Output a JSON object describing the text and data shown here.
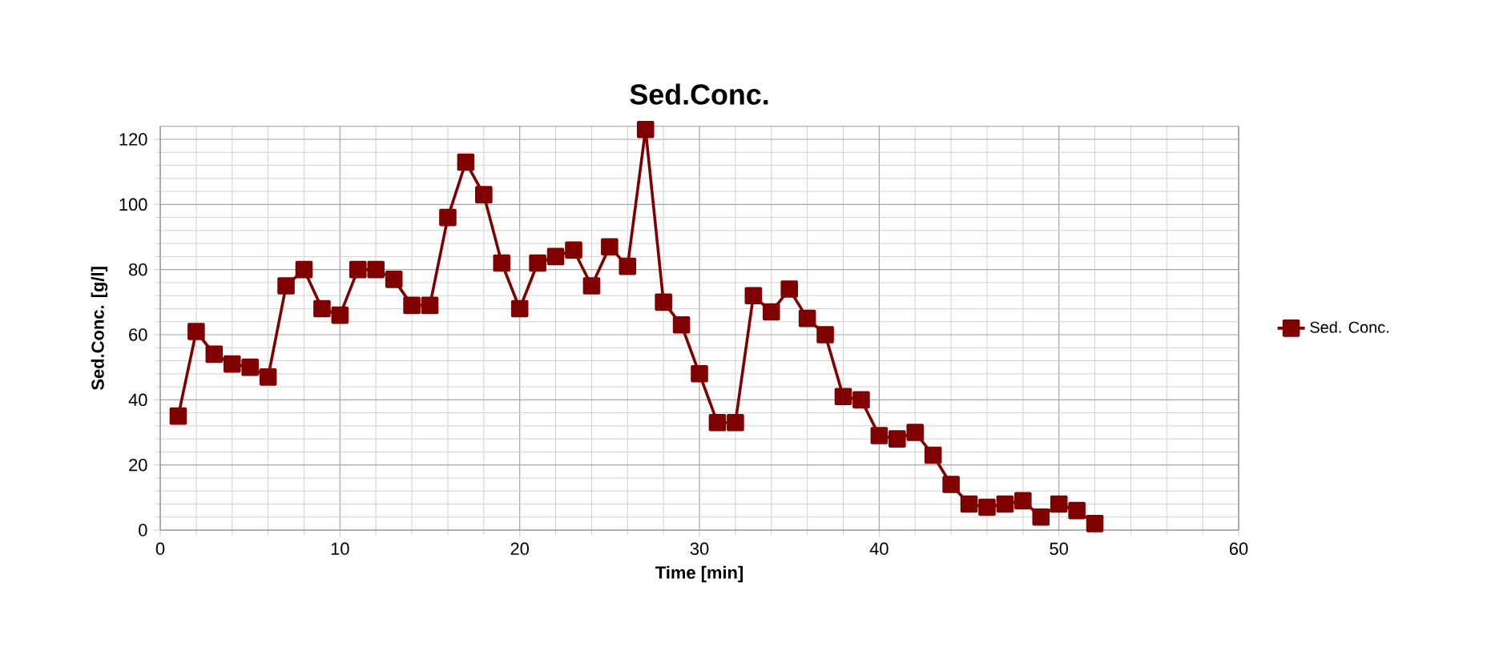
{
  "chart_data": {
    "type": "line",
    "title": "Sed.Conc.",
    "xlabel": "Time [min]",
    "ylabel": "Sed.Conc. [g/l]",
    "x": [
      1,
      2,
      3,
      4,
      5,
      6,
      7,
      8,
      9,
      10,
      11,
      12,
      13,
      14,
      15,
      16,
      17,
      18,
      19,
      20,
      21,
      22,
      23,
      24,
      25,
      26,
      27,
      28,
      29,
      30,
      31,
      32,
      33,
      34,
      35,
      36,
      37,
      38,
      39,
      40,
      41,
      42,
      43,
      44,
      45,
      46,
      47,
      48,
      49,
      50,
      51,
      52
    ],
    "series": [
      {
        "name": "Sed. Conc.",
        "color": "#800000",
        "values": [
          35,
          61,
          54,
          51,
          50,
          47,
          75,
          80,
          68,
          66,
          80,
          80,
          77,
          69,
          69,
          96,
          113,
          103,
          82,
          68,
          82,
          84,
          86,
          75,
          87,
          81,
          123,
          70,
          63,
          48,
          33,
          33,
          72,
          67,
          74,
          65,
          60,
          41,
          40,
          29,
          28,
          30,
          23,
          14,
          8,
          7,
          8,
          9,
          4,
          8,
          6,
          2
        ]
      }
    ],
    "xlim": [
      0,
      60
    ],
    "xticks": [
      0,
      10,
      20,
      30,
      40,
      50,
      60
    ],
    "ylim": [
      0,
      124
    ],
    "yticks": [
      0,
      20,
      40,
      60,
      80,
      100,
      120
    ],
    "grid": true,
    "legend": "right",
    "marker": "square",
    "line_style": "solid"
  }
}
